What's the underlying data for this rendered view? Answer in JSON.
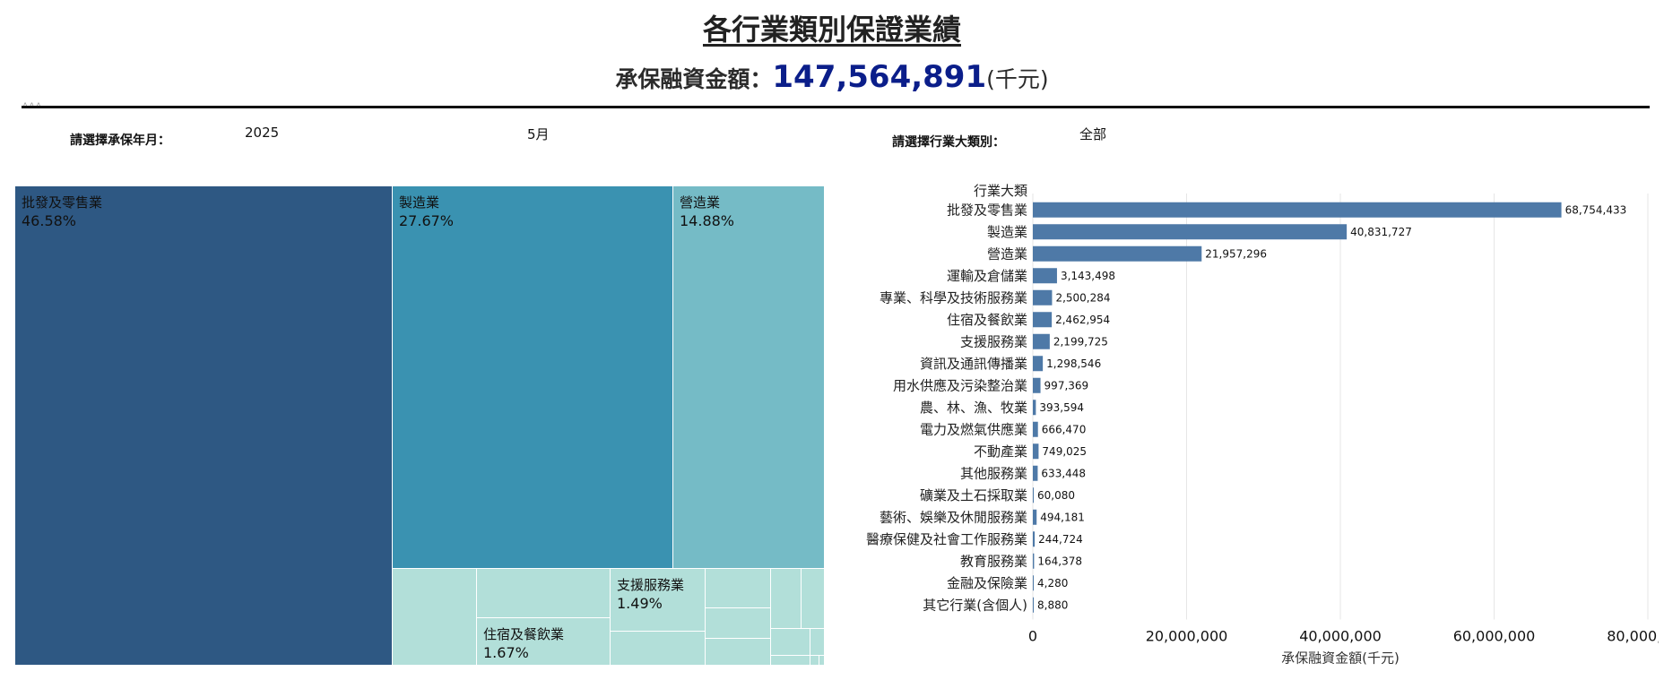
{
  "header": {
    "title": "各行業類別保證業績",
    "kpi_label": "承保融資金額：",
    "kpi_value": "147,564,891",
    "kpi_unit": "(千元)",
    "tiny_mark": "AAA"
  },
  "filters": {
    "month_label": "請選擇承保年月：",
    "year_value": "2025",
    "month_value": "5月",
    "industry_label": "請選擇行業大類別：",
    "industry_value": "全部"
  },
  "treemap": {
    "tiles": [
      {
        "name": "批發及零售業",
        "pct": "46.58%",
        "color": "#2e5883"
      },
      {
        "name": "製造業",
        "pct": "27.67%",
        "color": "#3a92b1"
      },
      {
        "name": "營造業",
        "pct": "14.88%",
        "color": "#75bbc6"
      },
      {
        "name": "支援服務業",
        "pct": "1.49%",
        "color": "#b2dfd9"
      },
      {
        "name": "住宿及餐飲業",
        "pct": "1.67%",
        "color": "#b2dfd9"
      }
    ],
    "small_tile_color": "#b2dfd9"
  },
  "chart_data": {
    "type": "bar",
    "orientation": "horizontal",
    "category_header": "行業大類",
    "categories": [
      "批發及零售業",
      "製造業",
      "營造業",
      "運輸及倉儲業",
      "專業、科學及技術服務業",
      "住宿及餐飲業",
      "支援服務業",
      "資訊及通訊傳播業",
      "用水供應及污染整治業",
      "農、林、漁、牧業",
      "電力及燃氣供應業",
      "不動產業",
      "其他服務業",
      "礦業及土石採取業",
      "藝術、娛樂及休閒服務業",
      "醫療保健及社會工作服務業",
      "教育服務業",
      "金融及保險業",
      "其它行業(含個人)"
    ],
    "values": [
      68754433,
      40831727,
      21957296,
      3143498,
      2500284,
      2462954,
      2199725,
      1298546,
      997369,
      393594,
      666470,
      749025,
      633448,
      60080,
      494181,
      244724,
      164378,
      4280,
      8880
    ],
    "value_labels": [
      "68,754,433",
      "40,831,727",
      "21,957,296",
      "3,143,498",
      "2,500,284",
      "2,462,954",
      "2,199,725",
      "1,298,546",
      "997,369",
      "393,594",
      "666,470",
      "749,025",
      "633,448",
      "60,080",
      "494,181",
      "244,724",
      "164,378",
      "4,280",
      "8,880"
    ],
    "xlabel": "承保融資金額(千元)",
    "xlim": [
      0,
      80000000
    ],
    "xticks": [
      0,
      20000000,
      40000000,
      60000000,
      80000000
    ],
    "xtick_labels": [
      "0",
      "20,000,000",
      "40,000,000",
      "60,000,000",
      "80,000,000"
    ],
    "bar_color": "#4e79a7",
    "grid": true
  }
}
